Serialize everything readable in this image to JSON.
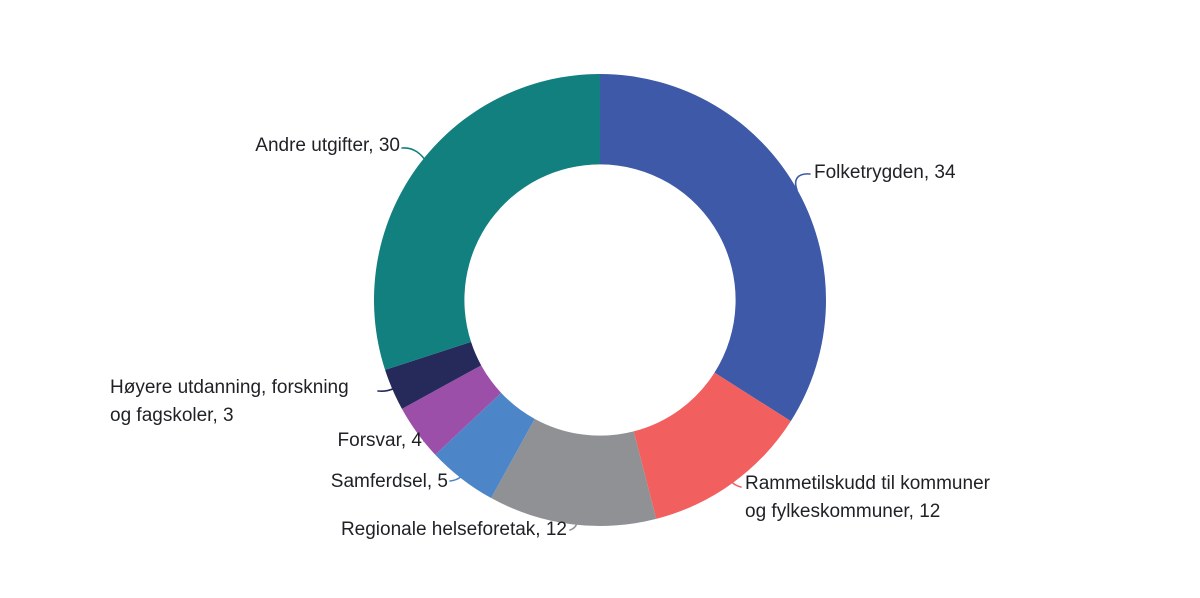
{
  "chart_data": {
    "type": "pie",
    "subtype": "donut",
    "title": "",
    "categories": [
      "Folketrygden",
      "Rammetilskudd til kommuner og fylkeskommuner",
      "Regionale helseforetak",
      "Samferdsel",
      "Forsvar",
      "Høyere utdanning, forskning og fagskoler",
      "Andre utgifter"
    ],
    "values": [
      34,
      12,
      12,
      5,
      4,
      3,
      30
    ],
    "total": 100,
    "colors": [
      "#3E59A8",
      "#F25F5F",
      "#8F9194",
      "#4D86C8",
      "#9C4FA8",
      "#252A5B",
      "#12807F"
    ],
    "start_angle_deg": 0,
    "direction": "clockwise",
    "inner_radius_ratio": 0.6,
    "legend_position": "labels-with-leader-lines",
    "grid": false,
    "text_color": "#1F2125",
    "background": "#FFFFFF",
    "labels_display": [
      {
        "lines": [
          "Folketrygden, 34"
        ]
      },
      {
        "lines": [
          "Rammetilskudd til kommuner",
          "og fylkeskommuner, 12"
        ]
      },
      {
        "lines": [
          "Regionale helseforetak, 12"
        ]
      },
      {
        "lines": [
          "Samferdsel, 5"
        ]
      },
      {
        "lines": [
          "Forsvar, 4"
        ]
      },
      {
        "lines": [
          "Høyere utdanning, forskning",
          "og fagskoler, 3"
        ]
      },
      {
        "lines": [
          "Andre utgifter, 30"
        ]
      }
    ]
  }
}
